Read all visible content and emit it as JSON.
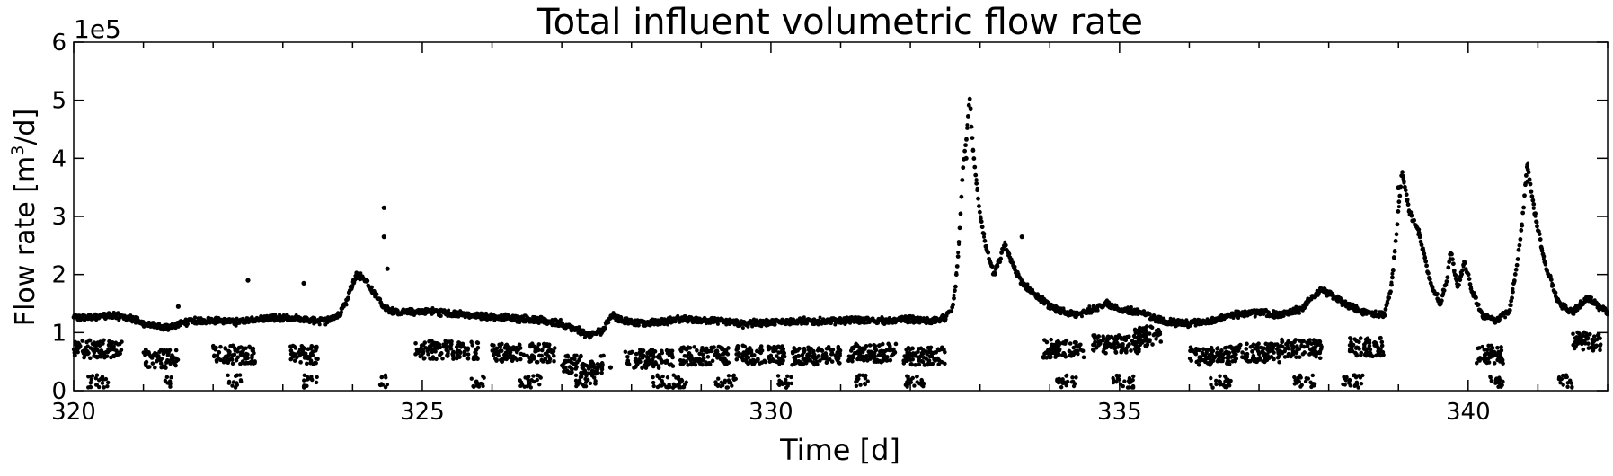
{
  "chart_data": {
    "type": "scatter",
    "title": "Total influent volumetric flow rate",
    "xlabel": "Time [d]",
    "ylabel_main": "Flow rate [m",
    "ylabel_sup": "3",
    "ylabel_tail": "/d]",
    "y_offset_label": "1e5",
    "xlim": [
      320,
      342
    ],
    "ylim": [
      0,
      6
    ],
    "x_ticks_major": [
      320,
      325,
      330,
      335,
      340
    ],
    "x_tick_labels": [
      "320",
      "325",
      "330",
      "335",
      "340"
    ],
    "y_ticks": [
      0,
      1,
      2,
      3,
      4,
      5,
      6
    ],
    "y_tick_labels": [
      "0",
      "1",
      "2",
      "3",
      "4",
      "5",
      "6"
    ],
    "y_units_multiplier": 100000,
    "grid": false,
    "marker_color": "#000000",
    "series": [
      {
        "upper_band_points": [
          [
            320.0,
            1.25
          ],
          [
            320.3,
            1.27
          ],
          [
            320.6,
            1.3
          ],
          [
            320.9,
            1.22
          ],
          [
            321.0,
            1.15
          ],
          [
            321.3,
            1.08
          ],
          [
            321.6,
            1.18
          ],
          [
            322.0,
            1.22
          ],
          [
            322.3,
            1.18
          ],
          [
            322.6,
            1.24
          ],
          [
            323.0,
            1.25
          ],
          [
            323.3,
            1.22
          ],
          [
            323.6,
            1.2
          ],
          [
            323.8,
            1.3
          ],
          [
            323.9,
            1.5
          ],
          [
            324.0,
            1.85
          ],
          [
            324.05,
            2.0
          ],
          [
            324.15,
            1.95
          ],
          [
            324.3,
            1.7
          ],
          [
            324.45,
            1.45
          ],
          [
            324.6,
            1.35
          ],
          [
            325.0,
            1.37
          ],
          [
            325.3,
            1.35
          ],
          [
            325.6,
            1.3
          ],
          [
            326.0,
            1.28
          ],
          [
            326.3,
            1.25
          ],
          [
            326.6,
            1.22
          ],
          [
            327.0,
            1.15
          ],
          [
            327.2,
            1.05
          ],
          [
            327.4,
            0.95
          ],
          [
            327.6,
            1.05
          ],
          [
            327.7,
            1.3
          ],
          [
            327.9,
            1.2
          ],
          [
            328.2,
            1.15
          ],
          [
            328.6,
            1.22
          ],
          [
            329.0,
            1.22
          ],
          [
            329.3,
            1.2
          ],
          [
            329.6,
            1.15
          ],
          [
            330.0,
            1.18
          ],
          [
            330.4,
            1.2
          ],
          [
            330.8,
            1.2
          ],
          [
            331.2,
            1.22
          ],
          [
            331.6,
            1.2
          ],
          [
            332.0,
            1.22
          ],
          [
            332.3,
            1.2
          ],
          [
            332.5,
            1.25
          ],
          [
            332.6,
            1.4
          ],
          [
            332.65,
            1.8
          ],
          [
            332.7,
            2.6
          ],
          [
            332.75,
            3.8
          ],
          [
            332.8,
            4.3
          ],
          [
            332.85,
            5.1
          ],
          [
            332.9,
            4.1
          ],
          [
            333.0,
            3.0
          ],
          [
            333.1,
            2.4
          ],
          [
            333.2,
            2.0
          ],
          [
            333.3,
            2.3
          ],
          [
            333.35,
            2.55
          ],
          [
            333.45,
            2.2
          ],
          [
            333.6,
            1.85
          ],
          [
            333.8,
            1.65
          ],
          [
            334.0,
            1.45
          ],
          [
            334.2,
            1.35
          ],
          [
            334.4,
            1.3
          ],
          [
            334.6,
            1.4
          ],
          [
            334.8,
            1.5
          ],
          [
            335.0,
            1.4
          ],
          [
            335.3,
            1.35
          ],
          [
            335.6,
            1.2
          ],
          [
            336.0,
            1.15
          ],
          [
            336.3,
            1.2
          ],
          [
            336.6,
            1.3
          ],
          [
            337.0,
            1.35
          ],
          [
            337.3,
            1.3
          ],
          [
            337.6,
            1.4
          ],
          [
            337.9,
            1.75
          ],
          [
            338.1,
            1.6
          ],
          [
            338.3,
            1.45
          ],
          [
            338.5,
            1.35
          ],
          [
            338.8,
            1.3
          ],
          [
            338.9,
            1.8
          ],
          [
            339.0,
            3.1
          ],
          [
            339.05,
            3.8
          ],
          [
            339.15,
            3.1
          ],
          [
            339.3,
            2.7
          ],
          [
            339.45,
            1.9
          ],
          [
            339.6,
            1.5
          ],
          [
            339.7,
            1.95
          ],
          [
            339.75,
            2.4
          ],
          [
            339.85,
            1.8
          ],
          [
            339.95,
            2.2
          ],
          [
            340.05,
            1.75
          ],
          [
            340.2,
            1.3
          ],
          [
            340.4,
            1.2
          ],
          [
            340.6,
            1.4
          ],
          [
            340.75,
            2.6
          ],
          [
            340.85,
            3.9
          ],
          [
            340.95,
            3.1
          ],
          [
            341.1,
            2.2
          ],
          [
            341.3,
            1.5
          ],
          [
            341.5,
            1.35
          ],
          [
            341.7,
            1.6
          ],
          [
            342.0,
            1.35
          ]
        ]
      }
    ]
  }
}
